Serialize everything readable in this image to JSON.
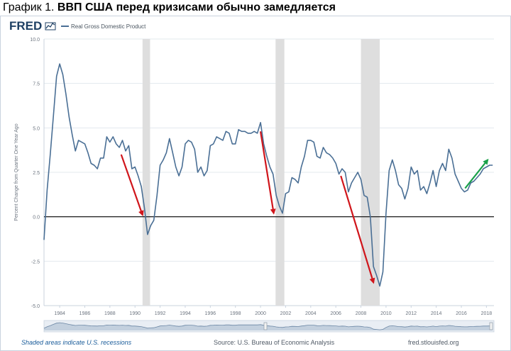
{
  "heading": {
    "prefix": "График 1.",
    "bold": "ВВП США перед кризисами обычно замедляется"
  },
  "logo": "FRED",
  "legend_label": "Real Gross Domestic Product",
  "footer": {
    "left": "Shaded areas indicate U.S. recessions",
    "source": "Source: U.S. Bureau of Economic Analysis",
    "site": "fred.stlouisfed.org"
  },
  "colors": {
    "line": "#4a6f95",
    "recession": "#dedede",
    "zero": "#000000",
    "red_arrow": "#d0151b",
    "green_arrow": "#1aa14a",
    "grid": "#e3e8ee",
    "axis_text": "#6d7580",
    "legend_blue": "#4a6f95"
  },
  "chart_data": {
    "type": "line",
    "title": "График 1. ВВП США перед кризисами обычно замедляется",
    "ylabel": "Percent Change from Quarter One Year Ago",
    "xlabel": "",
    "ylim": [
      -5.0,
      10.0
    ],
    "xlim": [
      1982.75,
      2018.6
    ],
    "yticks": [
      "10.0",
      "7.5",
      "5.0",
      "2.5",
      "0.0",
      "-2.5",
      "-5.0"
    ],
    "xticks": [
      "1984",
      "1986",
      "1988",
      "1990",
      "1992",
      "1994",
      "1996",
      "1998",
      "2000",
      "2002",
      "2004",
      "2006",
      "2008",
      "2010",
      "2012",
      "2014",
      "2016",
      "2018"
    ],
    "grid": true,
    "legend": "top-left",
    "recessions": [
      [
        1990.6,
        1991.2
      ],
      [
        2001.2,
        2001.9
      ],
      [
        2008.0,
        2009.5
      ]
    ],
    "series": [
      {
        "name": "Real Gross Domestic Product",
        "x": [
          1982.75,
          1983.0,
          1983.25,
          1983.5,
          1983.75,
          1984.0,
          1984.25,
          1984.5,
          1984.75,
          1985.0,
          1985.25,
          1985.5,
          1985.75,
          1986.0,
          1986.25,
          1986.5,
          1986.75,
          1987.0,
          1987.25,
          1987.5,
          1987.75,
          1988.0,
          1988.25,
          1988.5,
          1988.75,
          1989.0,
          1989.25,
          1989.5,
          1989.75,
          1990.0,
          1990.25,
          1990.5,
          1990.75,
          1991.0,
          1991.25,
          1991.5,
          1991.75,
          1992.0,
          1992.25,
          1992.5,
          1992.75,
          1993.0,
          1993.25,
          1993.5,
          1993.75,
          1994.0,
          1994.25,
          1994.5,
          1994.75,
          1995.0,
          1995.25,
          1995.5,
          1995.75,
          1996.0,
          1996.25,
          1996.5,
          1996.75,
          1997.0,
          1997.25,
          1997.5,
          1997.75,
          1998.0,
          1998.25,
          1998.5,
          1998.75,
          1999.0,
          1999.25,
          1999.5,
          1999.75,
          2000.0,
          2000.25,
          2000.5,
          2000.75,
          2001.0,
          2001.25,
          2001.5,
          2001.75,
          2002.0,
          2002.25,
          2002.5,
          2002.75,
          2003.0,
          2003.25,
          2003.5,
          2003.75,
          2004.0,
          2004.25,
          2004.5,
          2004.75,
          2005.0,
          2005.25,
          2005.5,
          2005.75,
          2006.0,
          2006.25,
          2006.5,
          2006.75,
          2007.0,
          2007.25,
          2007.5,
          2007.75,
          2008.0,
          2008.25,
          2008.5,
          2008.75,
          2009.0,
          2009.25,
          2009.5,
          2009.75,
          2010.0,
          2010.25,
          2010.5,
          2010.75,
          2011.0,
          2011.25,
          2011.5,
          2011.75,
          2012.0,
          2012.25,
          2012.5,
          2012.75,
          2013.0,
          2013.25,
          2013.5,
          2013.75,
          2014.0,
          2014.25,
          2014.5,
          2014.75,
          2015.0,
          2015.25,
          2015.5,
          2015.75,
          2016.0,
          2016.25,
          2016.5,
          2016.75,
          2017.0,
          2017.25,
          2017.5,
          2017.75,
          2018.0,
          2018.25,
          2018.5
        ],
        "values": [
          -1.3,
          1.5,
          3.5,
          5.7,
          7.9,
          8.6,
          8.0,
          6.9,
          5.6,
          4.6,
          3.7,
          4.3,
          4.2,
          4.1,
          3.6,
          3.0,
          2.9,
          2.7,
          3.3,
          3.3,
          4.5,
          4.2,
          4.5,
          4.1,
          3.9,
          4.3,
          3.7,
          4.0,
          2.7,
          2.8,
          2.3,
          1.7,
          0.5,
          -1.0,
          -0.5,
          -0.2,
          1.2,
          2.9,
          3.2,
          3.6,
          4.4,
          3.6,
          2.8,
          2.3,
          2.8,
          4.1,
          4.3,
          4.2,
          3.8,
          2.5,
          2.8,
          2.3,
          2.6,
          4.0,
          4.1,
          4.5,
          4.4,
          4.3,
          4.8,
          4.7,
          4.1,
          4.1,
          4.9,
          4.8,
          4.8,
          4.7,
          4.7,
          4.8,
          4.7,
          5.3,
          4.1,
          3.4,
          2.8,
          2.4,
          1.2,
          0.6,
          0.2,
          1.3,
          1.4,
          2.2,
          2.1,
          1.9,
          2.8,
          3.4,
          4.3,
          4.3,
          4.2,
          3.4,
          3.3,
          3.9,
          3.6,
          3.5,
          3.3,
          3.0,
          2.4,
          2.7,
          2.5,
          1.4,
          1.9,
          2.2,
          2.5,
          2.1,
          1.2,
          1.1,
          0.0,
          -2.8,
          -3.3,
          -3.9,
          -3.1,
          0.2,
          2.6,
          3.2,
          2.6,
          1.8,
          1.6,
          1.0,
          1.6,
          2.8,
          2.4,
          2.6,
          1.5,
          1.7,
          1.3,
          1.9,
          2.6,
          1.7,
          2.6,
          3.0,
          2.6,
          3.8,
          3.3,
          2.4,
          2.0,
          1.6,
          1.4,
          1.5,
          1.9,
          2.0,
          2.2,
          2.4,
          2.7,
          2.8,
          2.9,
          2.9
        ]
      }
    ],
    "annotations": [
      {
        "type": "arrow",
        "color": "red",
        "from": [
          1988.9,
          3.5
        ],
        "to": [
          1990.6,
          0.1
        ]
      },
      {
        "type": "arrow",
        "color": "red",
        "from": [
          2000.0,
          4.8
        ],
        "to": [
          2001.05,
          0.2
        ]
      },
      {
        "type": "arrow",
        "color": "red",
        "from": [
          2006.4,
          2.3
        ],
        "to": [
          2009.0,
          -3.7
        ]
      },
      {
        "type": "arrow",
        "color": "green",
        "from": [
          2016.3,
          1.6
        ],
        "to": [
          2018.1,
          3.2
        ]
      }
    ]
  }
}
